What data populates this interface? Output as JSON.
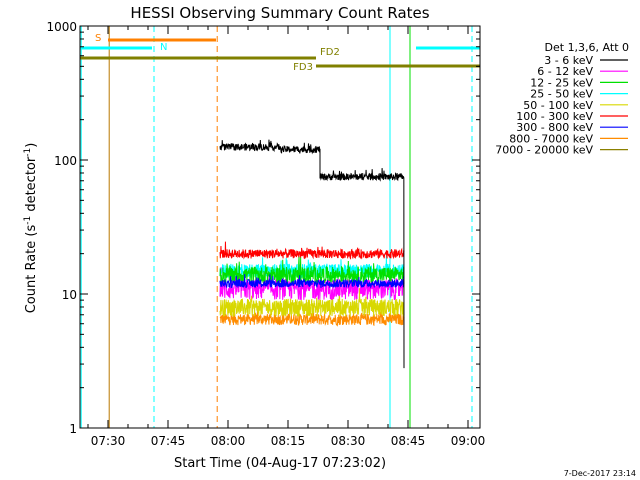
{
  "chart_data": {
    "type": "line",
    "title": "HESSI Observing Summary Count Rates",
    "xlabel": "Start Time (04-Aug-17 07:23:02)",
    "ylabel_main": "Count Rate (s",
    "ylabel_sup1": "-1",
    "ylabel_mid": " detector",
    "ylabel_sup2": "-1",
    "ylabel_end": ")",
    "footer": "7-Dec-2017 23:14",
    "y_scale": "log",
    "ylim": [
      1,
      1000
    ],
    "xlim_minutes": [
      443,
      543
    ],
    "x_ticks": [
      {
        "t": 450,
        "label": "07:30"
      },
      {
        "t": 465,
        "label": "07:45"
      },
      {
        "t": 480,
        "label": "08:00"
      },
      {
        "t": 495,
        "label": "08:15"
      },
      {
        "t": 510,
        "label": "08:30"
      },
      {
        "t": 525,
        "label": "08:45"
      },
      {
        "t": 540,
        "label": "09:00"
      }
    ],
    "y_ticks": [
      {
        "v": 1,
        "label": "1"
      },
      {
        "v": 10,
        "label": "10"
      },
      {
        "v": 100,
        "label": "100"
      },
      {
        "v": 1000,
        "label": "1000"
      }
    ],
    "legend_title": "Det 1,3,6, Att 0",
    "legend_position": "right",
    "series": [
      {
        "name": "3 - 6 keV",
        "color": "#000000",
        "segments": [
          [
            478,
            493,
            125
          ],
          [
            493,
            503,
            120
          ],
          [
            503,
            524,
            75
          ]
        ],
        "noise": 0.06
      },
      {
        "name": "6 - 12 keV",
        "color": "#ff00ff",
        "segments": [
          [
            478,
            524,
            11
          ]
        ],
        "noise": 0.18
      },
      {
        "name": "12 - 25 keV",
        "color": "#00e000",
        "segments": [
          [
            478,
            524,
            14
          ]
        ],
        "noise": 0.14
      },
      {
        "name": "25 - 50 keV",
        "color": "#00ffff",
        "segments": [
          [
            478,
            524,
            15
          ]
        ],
        "noise": 0.12
      },
      {
        "name": "50 - 100 keV",
        "color": "#d8d800",
        "segments": [
          [
            478,
            524,
            8
          ]
        ],
        "noise": 0.15
      },
      {
        "name": "100 - 300 keV",
        "color": "#ff0000",
        "segments": [
          [
            478,
            524,
            20
          ]
        ],
        "noise": 0.08
      },
      {
        "name": "300 - 800 keV",
        "color": "#0000ff",
        "segments": [
          [
            478,
            524,
            12
          ]
        ],
        "noise": 0.07
      },
      {
        "name": "800 - 7000 keV",
        "color": "#ff8c00",
        "segments": [
          [
            478,
            524,
            6.5
          ]
        ],
        "noise": 0.1
      },
      {
        "name": "7000 - 20000 keV",
        "color": "#8b8000",
        "segments": [],
        "noise": 0
      }
    ],
    "flag_bars": [
      {
        "label": "S",
        "color": "#ff8000",
        "t0": 450,
        "t1": 477,
        "y": 40,
        "label_dx": -14,
        "label_dy": 1
      },
      {
        "label": "N",
        "color": "#00ffff",
        "t0": 443,
        "t1": 461,
        "y": 48,
        "label_dx": 8,
        "label_dy": -2
      },
      {
        "label": "",
        "color": "#00ffff",
        "t0": 527,
        "t1": 543,
        "y": 48,
        "label_dx": 0,
        "label_dy": 0
      },
      {
        "label": "FD2",
        "color": "#808000",
        "t0": 443,
        "t1": 502,
        "y": 58,
        "label_dx": 4,
        "label_dy": -3
      },
      {
        "label": "FD3",
        "color": "#808000",
        "t0": 502,
        "t1": 543,
        "y": 66,
        "label_dx": -28,
        "label_dy": 4
      }
    ],
    "vlines": [
      {
        "t": 443.3,
        "color": "#00ffff",
        "style": "solid"
      },
      {
        "t": 450.3,
        "color": "#b87800",
        "style": "solid"
      },
      {
        "t": 461.5,
        "color": "#00ffff",
        "style": "dashed"
      },
      {
        "t": 477.3,
        "color": "#ff8000",
        "style": "dashed"
      },
      {
        "t": 520.5,
        "color": "#00ffff",
        "style": "solid"
      },
      {
        "t": 525.5,
        "color": "#00e000",
        "style": "solid"
      },
      {
        "t": 541.0,
        "color": "#00ffff",
        "style": "dashed"
      }
    ]
  }
}
